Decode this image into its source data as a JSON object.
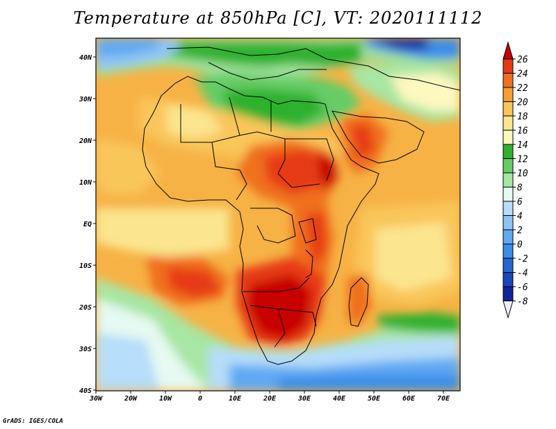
{
  "title": "Temperature at 850hPa [C], VT: 2020111112",
  "footer": "GrADS: IGES/COLA",
  "lat_ticks": [
    "40N",
    "30N",
    "20N",
    "10N",
    "EQ",
    "10S",
    "20S",
    "30S",
    "40S"
  ],
  "lon_ticks": [
    "30W",
    "20W",
    "10W",
    "0",
    "10E",
    "20E",
    "30E",
    "40E",
    "50E",
    "60E",
    "70E"
  ],
  "colorbar": {
    "labels": [
      "26",
      "24",
      "22",
      "20",
      "18",
      "16",
      "14",
      "12",
      "10",
      "8",
      "6",
      "4",
      "2",
      "0",
      "-2",
      "-4",
      "-6",
      "-8"
    ],
    "colors": [
      "#c80000",
      "#e63a16",
      "#f06f1f",
      "#f5a033",
      "#f9c65a",
      "#fbe58f",
      "#fdf8c0",
      "#2fb12f",
      "#66cc66",
      "#a7e6a3",
      "#e6f9f2",
      "#b6ddf9",
      "#8fc5f6",
      "#60a9f3",
      "#3a8de9",
      "#2666d6",
      "#1a45bb",
      "#13249a",
      "#0a0f70"
    ]
  }
}
